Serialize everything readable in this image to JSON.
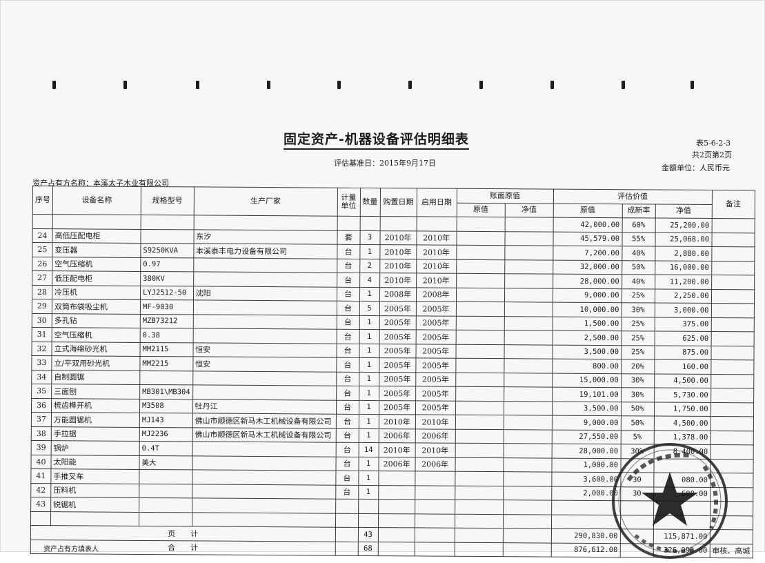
{
  "document": {
    "title": "固定资产-机器设备评估明细表",
    "table_code": "表5-6-2-3",
    "page_info": "共2页第2页",
    "eval_date": "评估基准日：2015年9月17日",
    "currency": "金额单位：人民币元",
    "owner": "资产占有方名称：本溪太子木业有限公司",
    "footer_note": "资产占有方填表人"
  },
  "table": {
    "headers": {
      "seq": "序号",
      "name": "设备名称",
      "model": "规格型号",
      "maker": "生产厂家",
      "unit": "计量单位",
      "qty": "数量",
      "purchase": "购置日期",
      "start": "启用日期",
      "book": "账面原值",
      "book_orig": "原值",
      "book_net": "净值",
      "eval": "评估价值",
      "eval_orig": "原值",
      "eval_rate": "成新率",
      "eval_net": "净值",
      "note": "备注"
    },
    "first_row": {
      "eval_orig": "42,000.00",
      "eval_rate": "60%",
      "eval_net": "25,200.00"
    },
    "rows": [
      {
        "no": "24",
        "name": "高低压配电柜",
        "model": "",
        "maker": "东汐",
        "unit": "套",
        "qty": "3",
        "purchase": "2010年",
        "start": "2010年",
        "eval_orig": "45,579.00",
        "eval_rate": "55%",
        "eval_net": "25,068.00"
      },
      {
        "no": "25",
        "name": "变压器",
        "model": "S9250KVA",
        "maker": "本溪泰丰电力设备有限公司",
        "unit": "台",
        "qty": "1",
        "purchase": "2010年",
        "start": "2010年",
        "eval_orig": "7,200.00",
        "eval_rate": "40%",
        "eval_net": "2,880.00"
      },
      {
        "no": "26",
        "name": "空气压缩机",
        "model": "0.97",
        "maker": "",
        "unit": "台",
        "qty": "2",
        "purchase": "2010年",
        "start": "2010年",
        "eval_orig": "32,000.00",
        "eval_rate": "50%",
        "eval_net": "16,000.00"
      },
      {
        "no": "27",
        "name": "低压配电柜",
        "model": "380KV",
        "maker": "",
        "unit": "台",
        "qty": "4",
        "purchase": "2010年",
        "start": "2010年",
        "eval_orig": "28,000.00",
        "eval_rate": "40%",
        "eval_net": "11,200.00"
      },
      {
        "no": "28",
        "name": "冷压机",
        "model": "LYJ2512-50",
        "maker": "沈阳",
        "unit": "台",
        "qty": "1",
        "purchase": "2008年",
        "start": "2008年",
        "eval_orig": "9,000.00",
        "eval_rate": "25%",
        "eval_net": "2,250.00"
      },
      {
        "no": "29",
        "name": "双筒布袋吸尘机",
        "model": "MF-9030",
        "maker": "",
        "unit": "台",
        "qty": "5",
        "purchase": "2005年",
        "start": "2005年",
        "eval_orig": "10,000.00",
        "eval_rate": "30%",
        "eval_net": "3,000.00"
      },
      {
        "no": "30",
        "name": "多孔钻",
        "model": "MZB73212",
        "maker": "",
        "unit": "台",
        "qty": "1",
        "purchase": "2005年",
        "start": "2005年",
        "eval_orig": "1,500.00",
        "eval_rate": "25%",
        "eval_net": "375.00"
      },
      {
        "no": "31",
        "name": "空气压缩机",
        "model": "0.38",
        "maker": "",
        "unit": "台",
        "qty": "1",
        "purchase": "2005年",
        "start": "2005年",
        "eval_orig": "2,500.00",
        "eval_rate": "25%",
        "eval_net": "625.00"
      },
      {
        "no": "32",
        "name": "立式海绵砂光机",
        "model": "MM2115",
        "maker": "恒安",
        "unit": "台",
        "qty": "1",
        "purchase": "2005年",
        "start": "2005年",
        "eval_orig": "3,500.00",
        "eval_rate": "25%",
        "eval_net": "875.00"
      },
      {
        "no": "33",
        "name": "立/平双用砂光机",
        "model": "MM2215",
        "maker": "恒安",
        "unit": "台",
        "qty": "1",
        "purchase": "2005年",
        "start": "2005年",
        "eval_orig": "800.00",
        "eval_rate": "20%",
        "eval_net": "160.00"
      },
      {
        "no": "34",
        "name": "自制圆锯",
        "model": "",
        "maker": "",
        "unit": "台",
        "qty": "1",
        "purchase": "2005年",
        "start": "2005年",
        "eval_orig": "15,000.00",
        "eval_rate": "30%",
        "eval_net": "4,500.00"
      },
      {
        "no": "35",
        "name": "三面刨",
        "model": "MB301\\MB304",
        "maker": "",
        "unit": "台",
        "qty": "1",
        "purchase": "2005年",
        "start": "2005年",
        "eval_orig": "19,101.00",
        "eval_rate": "30%",
        "eval_net": "5,730.00"
      },
      {
        "no": "36",
        "name": "梳齿榫开机",
        "model": "M3508",
        "maker": "牡丹江",
        "unit": "台",
        "qty": "1",
        "purchase": "2005年",
        "start": "2005年",
        "eval_orig": "3,500.00",
        "eval_rate": "50%",
        "eval_net": "1,750.00"
      },
      {
        "no": "37",
        "name": "万能圆锯机",
        "model": "MJ143",
        "maker": "佛山市顺德区新马木工机械设备有限公司",
        "unit": "台",
        "qty": "1",
        "purchase": "2010年",
        "start": "2010年",
        "eval_orig": "9,000.00",
        "eval_rate": "50%",
        "eval_net": "4,500.00"
      },
      {
        "no": "38",
        "name": "手拉据",
        "model": "MJ2236",
        "maker": "佛山市顺德区新马木工机械设备有限公司",
        "unit": "台",
        "qty": "1",
        "purchase": "2006年",
        "start": "2006年",
        "eval_orig": "27,550.00",
        "eval_rate": "5%",
        "eval_net": "1,378.00"
      },
      {
        "no": "39",
        "name": "锅炉",
        "model": "0.4T",
        "maker": "",
        "unit": "台",
        "qty": "14",
        "purchase": "2010年",
        "start": "2010年",
        "eval_orig": "28,000.00",
        "eval_rate": "30%",
        "eval_net": "8,400.00"
      },
      {
        "no": "40",
        "name": "太阳能",
        "model": "美大",
        "maker": "",
        "unit": "台",
        "qty": "1",
        "purchase": "2006年",
        "start": "2006年",
        "eval_orig": "1,000.00",
        "eval_rate": "",
        "eval_net": ""
      },
      {
        "no": "41",
        "name": "手推叉车",
        "model": "",
        "maker": "",
        "unit": "台",
        "qty": "1",
        "purchase": "",
        "start": "",
        "eval_orig": "3,600.00",
        "eval_rate": "30",
        "eval_net": "080.00"
      },
      {
        "no": "42",
        "name": "压料机",
        "model": "",
        "maker": "",
        "unit": "台",
        "qty": "1",
        "purchase": "",
        "start": "",
        "eval_orig": "2,000.00",
        "eval_rate": "30",
        "eval_net": "600.00"
      },
      {
        "no": "43",
        "name": "锐锯机",
        "model": "",
        "maker": "",
        "unit": "",
        "qty": "",
        "purchase": "",
        "start": "",
        "eval_orig": "",
        "eval_rate": "",
        "eval_net": ""
      }
    ],
    "subtotal": {
      "label": "页　　计",
      "qty": "43",
      "eval_orig": "290,830.00",
      "eval_net": "115,871.00"
    },
    "total": {
      "label": "合　　计",
      "qty": "68",
      "eval_orig": "876,612.00",
      "eval_net": "326,090.00",
      "trailing": "审核、高城"
    }
  }
}
